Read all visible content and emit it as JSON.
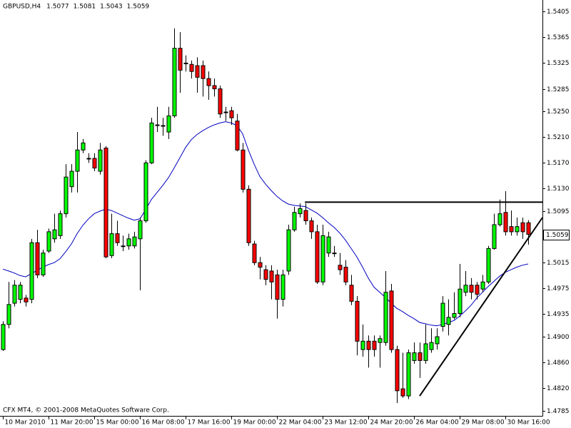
{
  "chart_data": {
    "type": "candlestick",
    "title": "GBPUSD,H4",
    "footer": "CFX MT4, © 2001-2008 MetaQuotes Software Corp.",
    "up_color": "#00ff00",
    "down_color": "#ff0000",
    "outline_color": "#000000",
    "categories": [
      "10 Mar 2010",
      null,
      null,
      null,
      null,
      null,
      null,
      null,
      "11 Mar 20:00",
      null,
      null,
      null,
      null,
      null,
      null,
      null,
      "15 Mar 00:00",
      null,
      null,
      null,
      null,
      null,
      null,
      null,
      "16 Mar 08:00",
      null,
      null,
      null,
      null,
      null,
      null,
      null,
      "17 Mar 16:00",
      null,
      null,
      null,
      null,
      null,
      null,
      null,
      "19 Mar 00:00",
      null,
      null,
      null,
      null,
      null,
      null,
      null,
      "22 Mar 04:00",
      null,
      null,
      null,
      null,
      null,
      null,
      null,
      "23 Mar 12:00",
      null,
      null,
      null,
      null,
      null,
      null,
      null,
      "24 Mar 20:00",
      null,
      null,
      null,
      null,
      null,
      null,
      null,
      "26 Mar 04:00",
      null,
      null,
      null,
      null,
      null,
      null,
      null,
      "29 Mar 08:00",
      null,
      null,
      null,
      null,
      null,
      null,
      null,
      "30 Mar 16:00",
      null,
      null,
      null,
      null
    ],
    "open": [
      1.488,
      1.4919,
      1.4952,
      1.4958,
      1.496,
      1.4958,
      1.5046,
      1.4996,
      1.5033,
      1.5052,
      1.5057,
      1.5091,
      1.5133,
      1.5157,
      1.519,
      1.5177,
      1.5177,
      1.5157,
      1.5193,
      1.5026,
      1.506,
      1.5041,
      1.5041,
      1.5041,
      1.5052,
      1.508,
      1.517,
      1.5229,
      1.5228,
      1.5218,
      1.5243,
      1.5348,
      1.5325,
      1.5323,
      1.5321,
      1.5321,
      1.5301,
      1.529,
      1.5285,
      1.5249,
      1.5251,
      1.5235,
      1.519,
      1.5129,
      1.5044,
      1.5015,
      1.5004,
      1.5002,
      1.4996,
      1.4958,
      1.5002,
      1.5066,
      1.5091,
      1.5096,
      1.508,
      1.5063,
      1.4985,
      1.503,
      1.503,
      1.5011,
      1.5008,
      1.498,
      1.4955,
      1.488,
      1.4893,
      1.4893,
      1.4891,
      1.4891,
      1.4971,
      1.488,
      1.4819,
      1.4808,
      1.4863,
      1.4875,
      1.4863,
      1.488,
      1.4889,
      1.4916,
      1.4919,
      1.493,
      1.4936,
      1.4969,
      1.498,
      1.498,
      1.4974,
      1.4985,
      1.5037,
      1.5074,
      1.5093,
      1.5071,
      1.5063,
      1.5077,
      1.5077
    ],
    "high": [
      1.4924,
      1.4985,
      1.4988,
      1.4985,
      1.4965,
      1.5052,
      1.5066,
      1.5035,
      1.5068,
      1.5091,
      1.5096,
      1.5168,
      1.5168,
      1.5218,
      1.5207,
      1.5185,
      1.5185,
      1.5201,
      1.5196,
      1.5091,
      1.508,
      1.5057,
      1.506,
      1.5063,
      1.5085,
      1.5174,
      1.524,
      1.5257,
      1.524,
      1.5257,
      1.5379,
      1.5373,
      1.5337,
      1.5329,
      1.5334,
      1.5329,
      1.5312,
      1.5301,
      1.529,
      1.5257,
      1.5257,
      1.5246,
      1.5201,
      1.5135,
      1.5049,
      1.5024,
      1.5011,
      1.5011,
      1.5004,
      1.5004,
      1.5074,
      1.5102,
      1.5107,
      1.5107,
      1.5085,
      1.5074,
      1.5074,
      1.5063,
      1.5041,
      1.503,
      1.5019,
      1.4996,
      1.4963,
      1.4919,
      1.4902,
      1.4902,
      1.4902,
      1.5002,
      1.4982,
      1.4886,
      1.4875,
      1.488,
      1.4891,
      1.4891,
      1.4919,
      1.4913,
      1.4913,
      1.4963,
      1.4958,
      1.4969,
      1.5013,
      1.5002,
      1.4991,
      1.4985,
      1.4996,
      1.5041,
      1.5091,
      1.5113,
      1.5126,
      1.5096,
      1.5085,
      1.5085,
      1.5081
    ],
    "low": [
      1.4878,
      1.4913,
      1.4947,
      1.4952,
      1.4947,
      1.4952,
      1.4991,
      1.4993,
      1.503,
      1.5046,
      1.5052,
      1.5085,
      1.5124,
      1.5124,
      1.5185,
      1.517,
      1.5157,
      1.5152,
      1.5022,
      1.5022,
      1.5041,
      1.5033,
      1.5035,
      1.5037,
      1.4972,
      1.5077,
      1.5168,
      1.5218,
      1.5212,
      1.5207,
      1.524,
      1.5279,
      1.5312,
      1.5301,
      1.5279,
      1.5273,
      1.5268,
      1.5273,
      1.524,
      1.5235,
      1.5229,
      1.5188,
      1.5124,
      1.5041,
      1.5011,
      1.4989,
      1.498,
      1.4958,
      1.4928,
      1.4947,
      1.4996,
      1.5063,
      1.5085,
      1.5074,
      1.5052,
      1.4982,
      1.498,
      1.5024,
      1.5024,
      1.4996,
      1.498,
      1.4949,
      1.4871,
      1.4869,
      1.4852,
      1.4869,
      1.4852,
      1.4886,
      1.4875,
      1.4797,
      1.4805,
      1.4803,
      1.4858,
      1.4836,
      1.4858,
      1.4875,
      1.488,
      1.4908,
      1.4902,
      1.4927,
      1.493,
      1.4963,
      1.4958,
      1.4958,
      1.4969,
      1.4982,
      1.5035,
      1.5071,
      1.5057,
      1.5057,
      1.5057,
      1.5052,
      1.5043
    ],
    "close": [
      1.4919,
      1.495,
      1.498,
      1.498,
      1.4954,
      1.5046,
      1.4996,
      1.503,
      1.5063,
      1.5066,
      1.5091,
      1.5148,
      1.5157,
      1.519,
      1.5201,
      1.5177,
      1.5162,
      1.519,
      1.5024,
      1.506,
      1.5046,
      1.5041,
      1.5052,
      1.5055,
      1.508,
      1.517,
      1.5232,
      1.5229,
      1.5228,
      1.5243,
      1.5348,
      1.5314,
      1.5325,
      1.5312,
      1.5303,
      1.5301,
      1.529,
      1.5285,
      1.5246,
      1.5249,
      1.524,
      1.519,
      1.5129,
      1.5046,
      1.5015,
      1.5008,
      1.4989,
      1.4985,
      1.4958,
      1.4996,
      1.5066,
      1.5093,
      1.5099,
      1.508,
      1.5063,
      1.4985,
      1.5057,
      1.5055,
      1.503,
      1.5004,
      1.4985,
      1.4955,
      1.4893,
      1.4893,
      1.488,
      1.488,
      1.4897,
      1.4969,
      1.488,
      1.4816,
      1.4808,
      1.4875,
      1.4875,
      1.4863,
      1.4889,
      1.4891,
      1.49,
      1.4952,
      1.493,
      1.4936,
      1.4974,
      1.498,
      1.4969,
      1.4966,
      1.4985,
      1.5037,
      1.5074,
      1.5091,
      1.5063,
      1.5063,
      1.5071,
      1.5063,
      1.5059
    ],
    "moving_average": {
      "color": "#0000c0",
      "values": [
        1.5005,
        1.5002,
        1.4999,
        1.4995,
        1.4993,
        1.4998,
        1.5003,
        1.5008,
        1.5012,
        1.5015,
        1.5021,
        1.5032,
        1.5044,
        1.506,
        1.5073,
        1.5083,
        1.5091,
        1.5095,
        1.5098,
        1.5096,
        1.5092,
        1.5088,
        1.5084,
        1.5081,
        1.5083,
        1.5097,
        1.5113,
        1.5124,
        1.5135,
        1.5147,
        1.5162,
        1.5178,
        1.5194,
        1.5206,
        1.5214,
        1.522,
        1.5225,
        1.5229,
        1.5232,
        1.5234,
        1.5232,
        1.5228,
        1.5215,
        1.519,
        1.5168,
        1.5149,
        1.5137,
        1.5127,
        1.5118,
        1.5111,
        1.5106,
        1.5104,
        1.5103,
        1.5102,
        1.5097,
        1.5092,
        1.5085,
        1.5077,
        1.507,
        1.5061,
        1.505,
        1.5037,
        1.5024,
        1.5008,
        1.4991,
        1.4977,
        1.4969,
        1.4961,
        1.4952,
        1.4944,
        1.4939,
        1.4933,
        1.4928,
        1.4922,
        1.492,
        1.4918,
        1.4917,
        1.4919,
        1.4922,
        1.4925,
        1.4932,
        1.494,
        1.4949,
        1.496,
        1.4969,
        1.4978,
        1.4986,
        1.4994,
        1.5,
        1.5004,
        1.5008,
        1.5011,
        1.5013
      ]
    },
    "trendlines": [
      {
        "color": "#000000",
        "x": [
          52.9,
          94.5
        ],
        "y": [
          1.5109,
          1.5109
        ]
      },
      {
        "color": "#000000",
        "x": [
          73,
          94.5
        ],
        "y": [
          1.4808,
          1.5085
        ]
      }
    ],
    "ylim": [
      1.4777,
      1.5423
    ],
    "yticks": [
      1.5405,
      1.5365,
      1.5325,
      1.5285,
      {
        "value": 1.525,
        "label": "1.5250"
      },
      {
        "value": 1.521,
        "label": "1.5210"
      },
      {
        "value": 1.517,
        "label": "1.5170"
      },
      {
        "value": 1.513,
        "label": "1.5130"
      },
      1.5095,
      1.5015,
      1.4975,
      1.4935,
      {
        "value": 1.49,
        "label": "1.4900"
      },
      {
        "value": 1.486,
        "label": "1.4860"
      },
      {
        "value": 1.482,
        "label": "1.4820"
      },
      1.4785
    ]
  }
}
